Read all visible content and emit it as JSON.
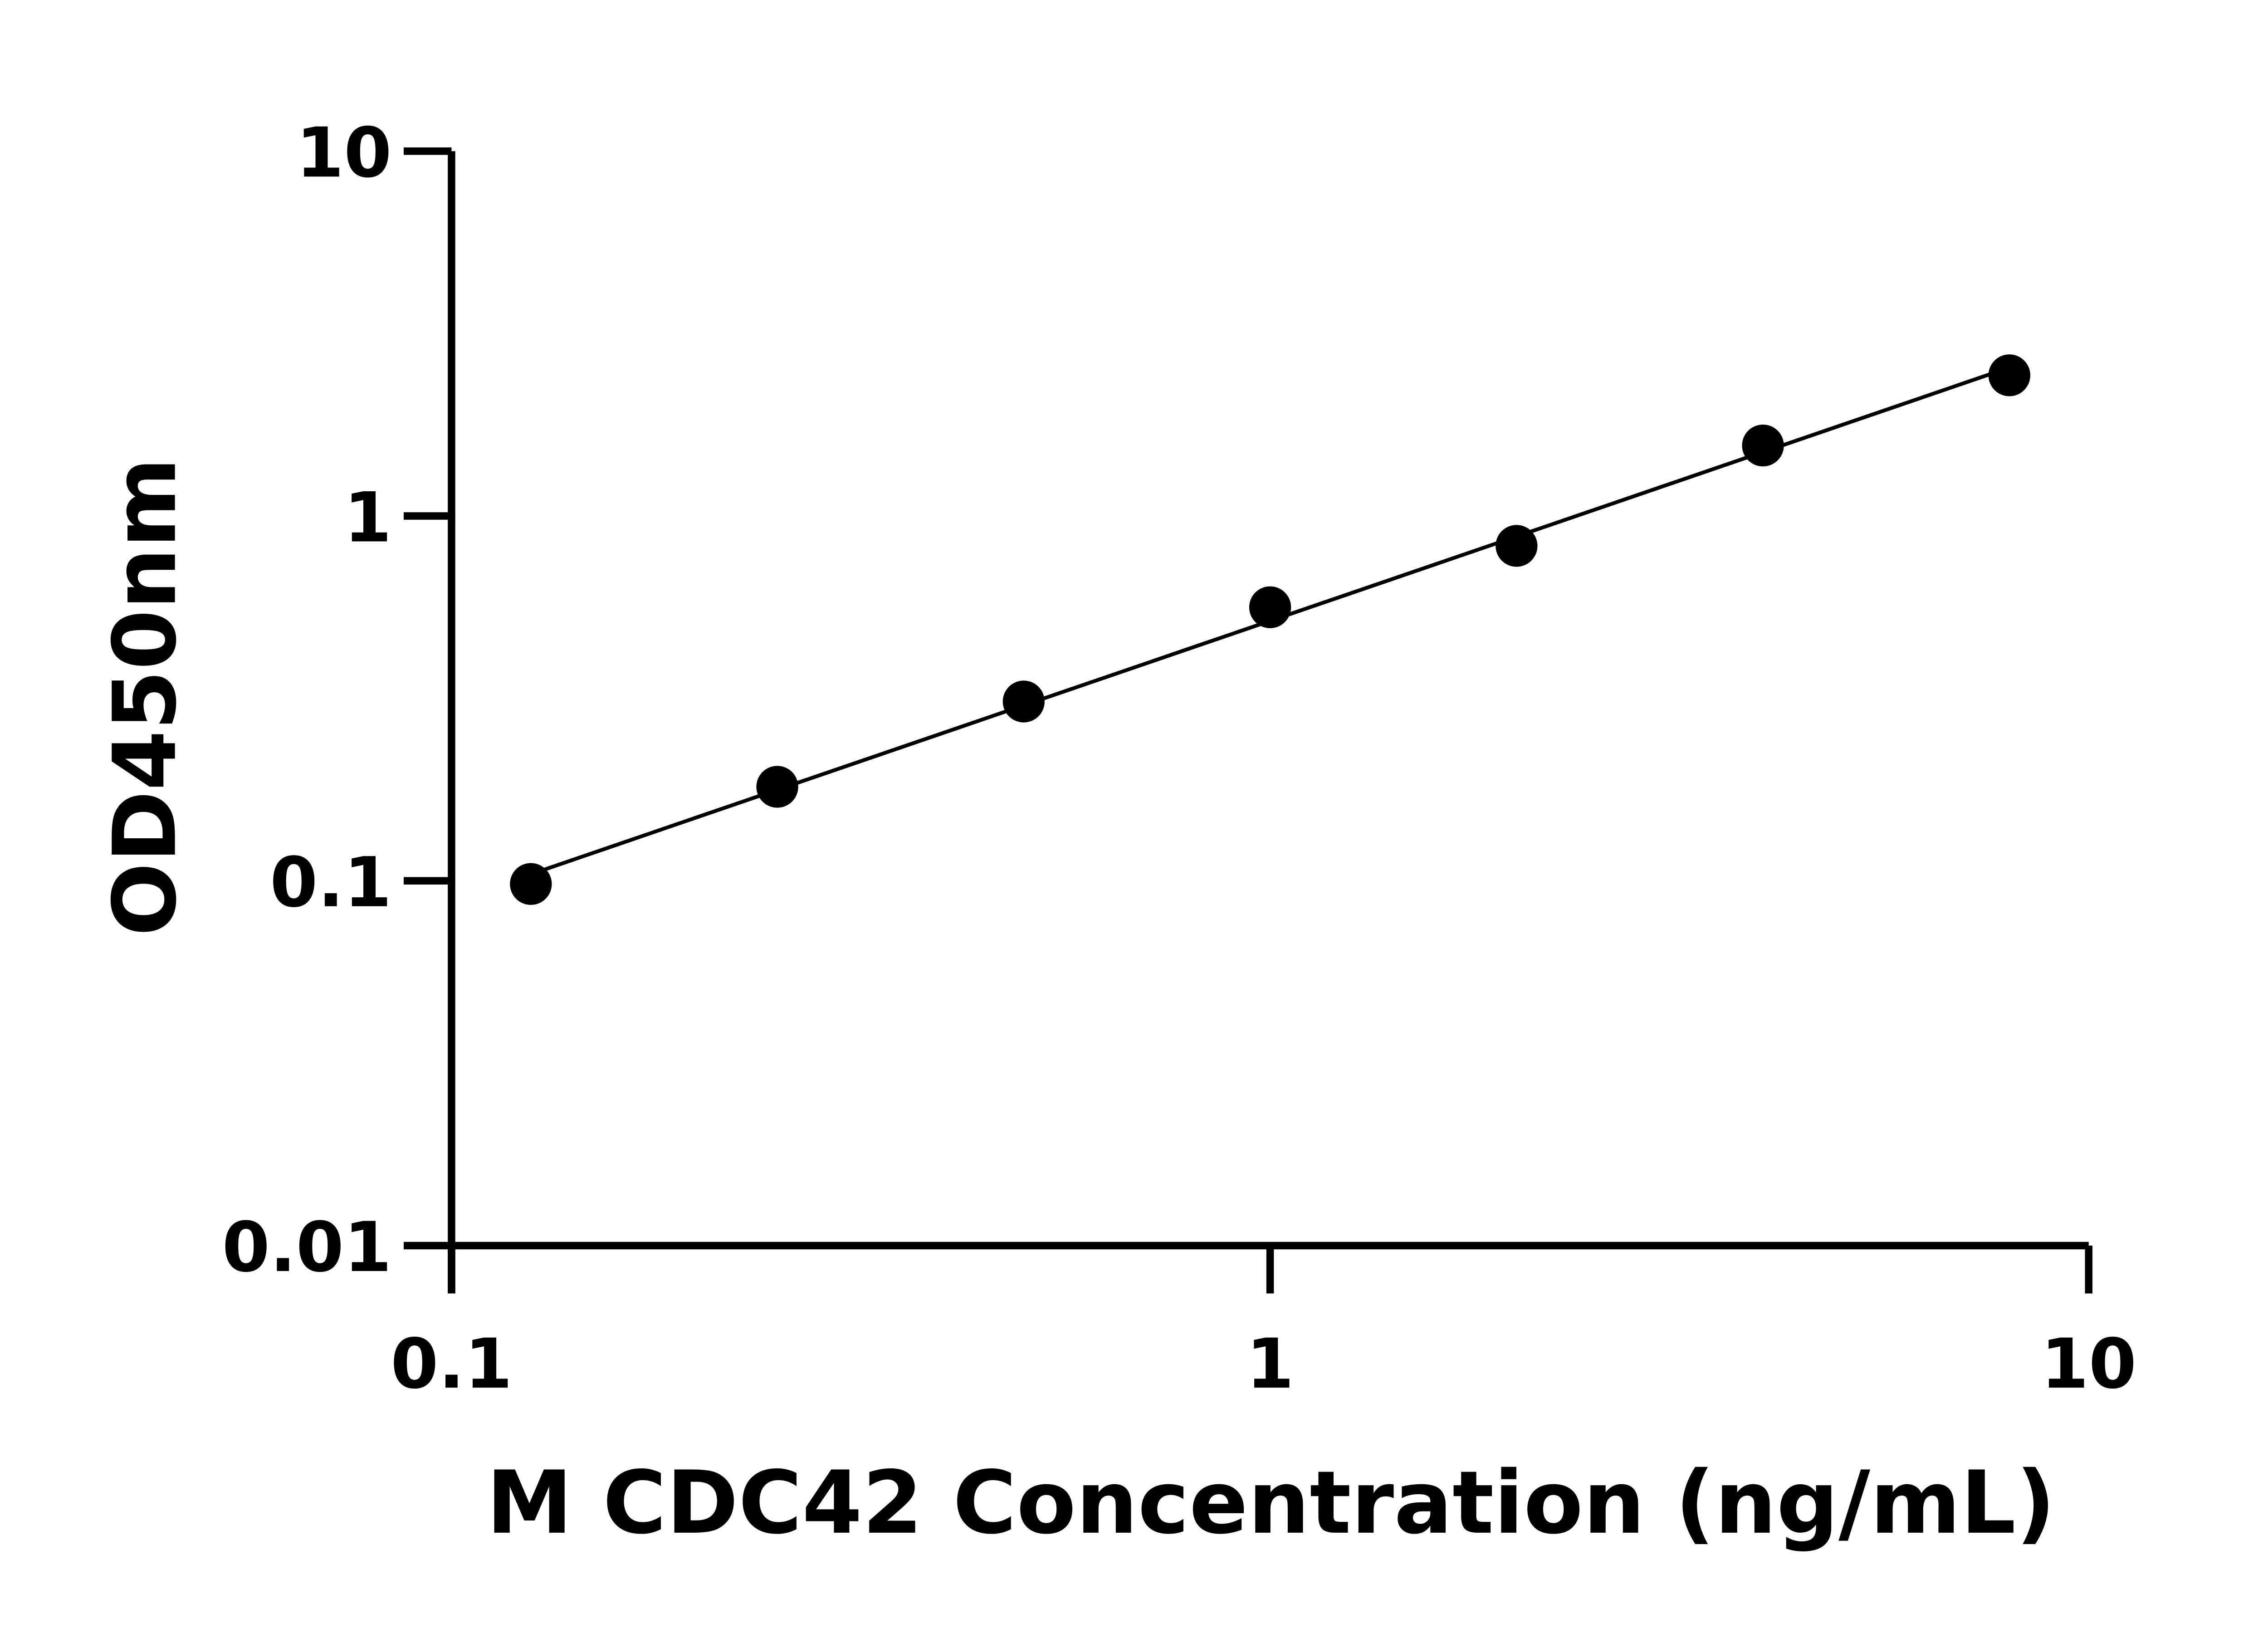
{
  "chart_data": {
    "type": "scatter",
    "title": "",
    "xlabel": "M CDC42 Concentration (ng/mL)",
    "ylabel": "OD450nm",
    "x_scale": "log",
    "y_scale": "log",
    "xlim": [
      0.1,
      10
    ],
    "ylim": [
      0.01,
      10
    ],
    "x_ticks": [
      "0.1",
      "1",
      "10"
    ],
    "y_ticks": [
      "0.01",
      "0.1",
      "1",
      "10"
    ],
    "grid": false,
    "legend": "none",
    "fit_line": "power (log-log linear)",
    "color": "#000000",
    "series": [
      {
        "x": [
          0.125,
          0.25,
          0.5,
          1,
          2,
          4,
          8
        ],
        "y": [
          0.098,
          0.181,
          0.31,
          0.562,
          0.828,
          1.56,
          2.43
        ]
      }
    ]
  }
}
